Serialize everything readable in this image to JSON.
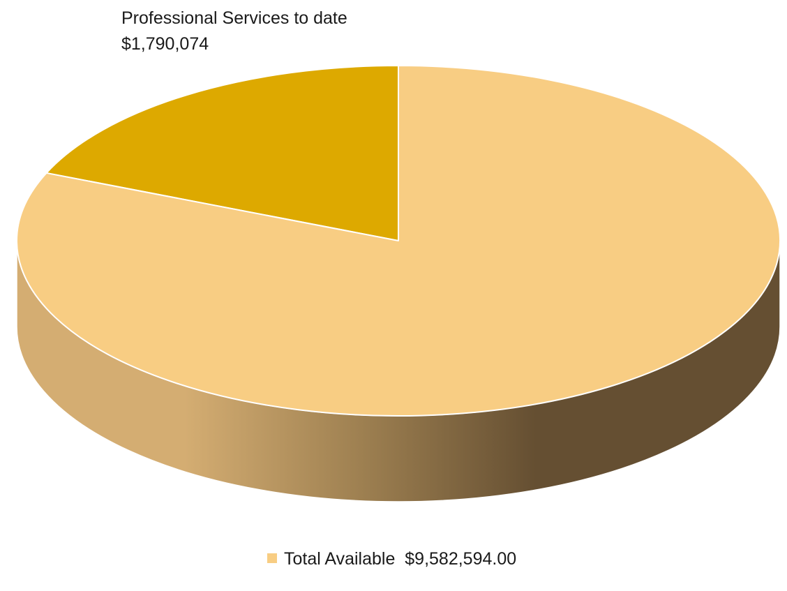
{
  "chart_data": {
    "type": "pie",
    "style": "3d",
    "series": [
      {
        "slices": [
          {
            "label_line1": "Professional Services to date",
            "label_line2": "$1,790,074",
            "value": 1790074,
            "color": "#DDA900"
          },
          {
            "label_line1": "",
            "label_line2": "",
            "value": 7792520,
            "color": "#F8CD83"
          }
        ]
      }
    ],
    "legend": {
      "position": "bottom",
      "entries": [
        {
          "label": "Total Available  $9,582,594.00",
          "color": "#F8CD83"
        }
      ]
    },
    "side_colors": {
      "light": "#D4AD72",
      "mid": "#9E8051",
      "dark": "#654F32"
    }
  }
}
